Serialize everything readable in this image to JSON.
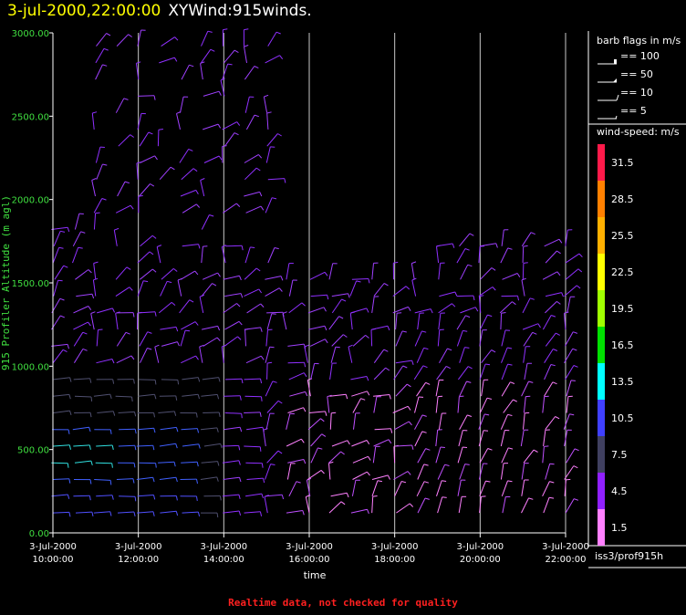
{
  "title": {
    "datetime": "3-jul-2000,22:00:00",
    "name": "XYWind:915winds."
  },
  "footer_note": "Realtime data, not checked for quality",
  "station": "iss3/prof915h",
  "barb_legend": {
    "title": "barb flags in m/s",
    "items": [
      "== 100",
      "== 50",
      "== 10",
      "== 5"
    ]
  },
  "speed_legend": {
    "title": "wind-speed: m/s",
    "bins": [
      {
        "label": "31.5",
        "color": "#ff1a4a"
      },
      {
        "label": "28.5",
        "color": "#ff8000"
      },
      {
        "label": "25.5",
        "color": "#ffb000"
      },
      {
        "label": "22.5",
        "color": "#ffff00"
      },
      {
        "label": "19.5",
        "color": "#a0ff00"
      },
      {
        "label": "16.5",
        "color": "#00e000"
      },
      {
        "label": "13.5",
        "color": "#00ffff"
      },
      {
        "label": "10.5",
        "color": "#4040ff"
      },
      {
        "label": "7.5",
        "color": "#404060"
      },
      {
        "label": "4.5",
        "color": "#9020ff"
      },
      {
        "label": "1.5",
        "color": "#ff80ff"
      }
    ]
  },
  "chart_data": {
    "type": "scatter",
    "xlabel": "time",
    "ylabel": "915 Profiler Altitude (m agl)",
    "ylim": [
      0,
      3000
    ],
    "y_ticks": [
      "3000.00",
      "2500.00",
      "2000.00",
      "1500.00",
      "1000.00",
      "500.00",
      "0.00"
    ],
    "x_ticks": [
      {
        "date": "3-Jul-2000",
        "time": "10:00:00"
      },
      {
        "date": "3-Jul-2000",
        "time": "12:00:00"
      },
      {
        "date": "3-Jul-2000",
        "time": "14:00:00"
      },
      {
        "date": "3-Jul-2000",
        "time": "16:00:00"
      },
      {
        "date": "3-Jul-2000",
        "time": "18:00:00"
      },
      {
        "date": "3-Jul-2000",
        "time": "20:00:00"
      },
      {
        "date": "3-Jul-2000",
        "time": "22:00:00"
      }
    ],
    "x_hours": [
      10,
      12,
      14,
      16,
      18,
      20,
      22
    ],
    "grid": "vertical",
    "grid_hours": [
      10,
      12,
      14,
      16,
      18,
      20,
      22
    ],
    "marks": "wind barbs colored by wind speed"
  }
}
